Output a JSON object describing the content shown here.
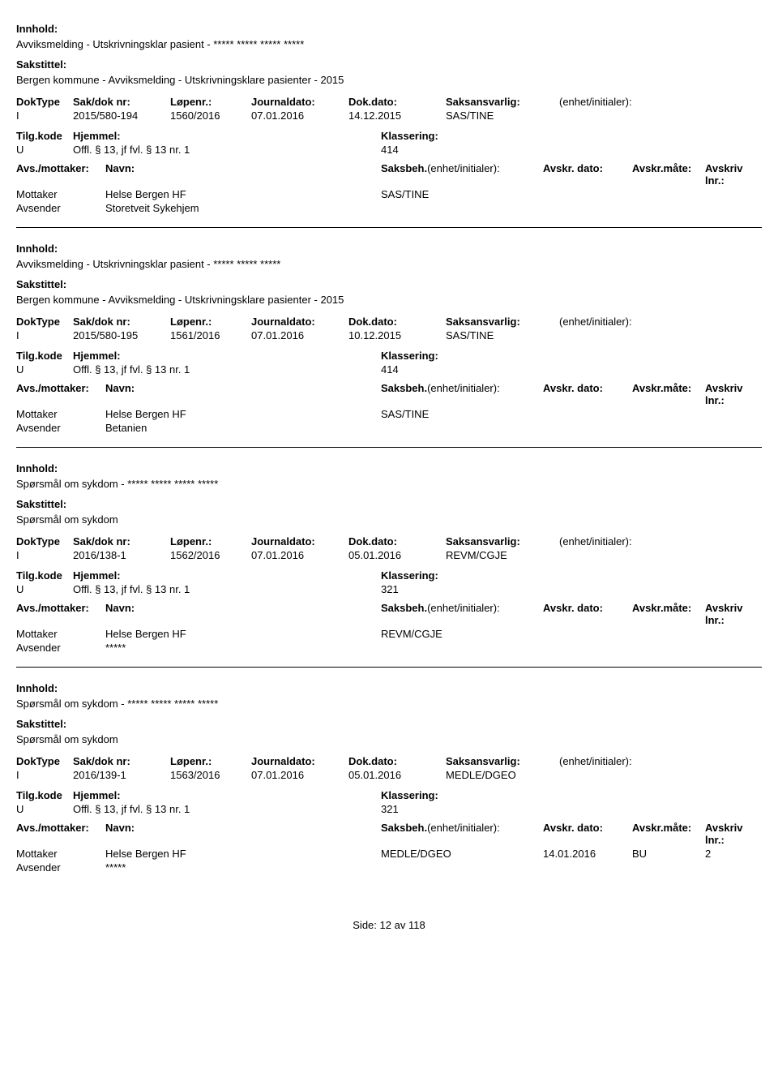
{
  "labels": {
    "innhold": "Innhold:",
    "sakstittel": "Sakstittel:",
    "doktype": "DokType",
    "sakdok": "Sak/dok nr:",
    "lopenr": "Løpenr.:",
    "journaldato": "Journaldato:",
    "dokdato": "Dok.dato:",
    "saksansvarlig": "Saksansvarlig:",
    "enhet": "(enhet/initialer):",
    "tilgkode": "Tilg.kode",
    "hjemmel": "Hjemmel:",
    "klassering": "Klassering:",
    "avsmottaker": "Avs./mottaker:",
    "navn": "Navn:",
    "saksbeh": "Saksbeh.",
    "saksbeh_enhet": "(enhet/initialer):",
    "avskrdato": "Avskr. dato:",
    "avskrmate": "Avskr.måte:",
    "avskrivlnr": "Avskriv lnr.:",
    "mottaker": "Mottaker",
    "avsender": "Avsender"
  },
  "records": [
    {
      "innhold": "Avviksmelding - Utskrivningsklar pasient - ***** ***** ***** *****",
      "sakstittel": "Bergen kommune - Avviksmelding - Utskrivningsklare pasienter - 2015",
      "doktype": "I",
      "sakdok": "2015/580-194",
      "lopenr": "1560/2016",
      "journaldato": "07.01.2016",
      "dokdato": "14.12.2015",
      "saksansvarlig": "SAS/TINE",
      "enhet": "",
      "tilgkode": "U",
      "hjemmel": "Offl. § 13, jf fvl. § 13 nr. 1",
      "klassering": "414",
      "mottaker_navn": "Helse Bergen HF",
      "saksbeh": "SAS/TINE",
      "avskrdato": "",
      "avskrmate": "",
      "avskrivlnr": "",
      "avsender_navn": "Storetveit Sykehjem"
    },
    {
      "innhold": "Avviksmelding - Utskrivningsklar pasient - ***** ***** *****",
      "sakstittel": "Bergen kommune - Avviksmelding - Utskrivningsklare pasienter - 2015",
      "doktype": "I",
      "sakdok": "2015/580-195",
      "lopenr": "1561/2016",
      "journaldato": "07.01.2016",
      "dokdato": "10.12.2015",
      "saksansvarlig": "SAS/TINE",
      "enhet": "",
      "tilgkode": "U",
      "hjemmel": "Offl. § 13, jf fvl. § 13 nr. 1",
      "klassering": "414",
      "mottaker_navn": "Helse Bergen HF",
      "saksbeh": "SAS/TINE",
      "avskrdato": "",
      "avskrmate": "",
      "avskrivlnr": "",
      "avsender_navn": "Betanien"
    },
    {
      "innhold": "Spørsmål om sykdom - ***** ***** ***** *****",
      "sakstittel": "Spørsmål om sykdom",
      "doktype": "I",
      "sakdok": "2016/138-1",
      "lopenr": "1562/2016",
      "journaldato": "07.01.2016",
      "dokdato": "05.01.2016",
      "saksansvarlig": "REVM/CGJE",
      "enhet": "",
      "tilgkode": "U",
      "hjemmel": "Offl. § 13, jf fvl. § 13 nr. 1",
      "klassering": "321",
      "mottaker_navn": "Helse Bergen HF",
      "saksbeh": "REVM/CGJE",
      "avskrdato": "",
      "avskrmate": "",
      "avskrivlnr": "",
      "avsender_navn": "*****"
    },
    {
      "innhold": "Spørsmål om sykdom - ***** ***** ***** *****",
      "sakstittel": "Spørsmål om sykdom",
      "doktype": "I",
      "sakdok": "2016/139-1",
      "lopenr": "1563/2016",
      "journaldato": "07.01.2016",
      "dokdato": "05.01.2016",
      "saksansvarlig": "MEDLE/DGEO",
      "enhet": "",
      "tilgkode": "U",
      "hjemmel": "Offl. § 13, jf fvl. § 13 nr. 1",
      "klassering": "321",
      "mottaker_navn": "Helse Bergen HF",
      "saksbeh": "MEDLE/DGEO",
      "avskrdato": "14.01.2016",
      "avskrmate": "BU",
      "avskrivlnr": "2",
      "avsender_navn": "*****"
    }
  ],
  "footer": {
    "prefix": "Side:",
    "page": "12",
    "sep": "av",
    "total": "118"
  }
}
